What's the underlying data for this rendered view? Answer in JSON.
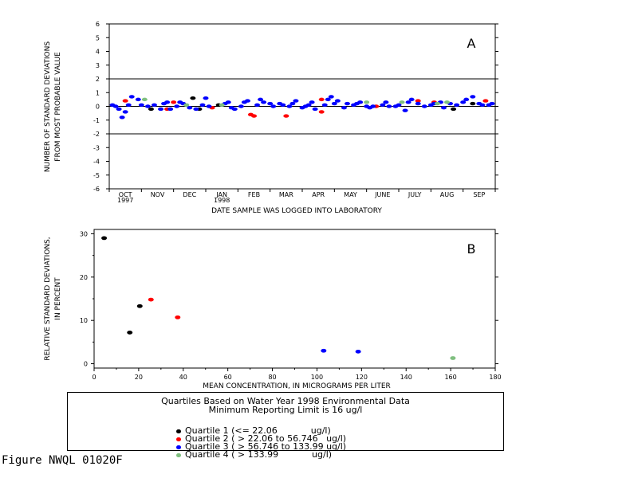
{
  "colors": {
    "quartile1": "#000000",
    "quartile2": "#ff0000",
    "quartile3": "#0000ff",
    "quartile4": "#7fbf7f"
  },
  "chart_data": [
    {
      "panel": "A",
      "type": "scatter",
      "xlabel": "DATE SAMPLE WAS LOGGED INTO LABORATORY",
      "ylabel": [
        "NUMBER OF STANDARD DEVIATIONS",
        "FROM MOST PROBABLE VALUE"
      ],
      "ylim": [
        -6,
        6
      ],
      "yticks": [
        -6,
        -5,
        -4,
        -3,
        -2,
        -1,
        0,
        1,
        2,
        3,
        4,
        5,
        6
      ],
      "months": [
        {
          "label": "OCT",
          "year": "1997"
        },
        {
          "label": "NOV",
          "year": ""
        },
        {
          "label": "DEC",
          "year": ""
        },
        {
          "label": "JAN",
          "year": "1998"
        },
        {
          "label": "FEB",
          "year": ""
        },
        {
          "label": "MAR",
          "year": ""
        },
        {
          "label": "APR",
          "year": ""
        },
        {
          "label": "MAY",
          "year": ""
        },
        {
          "label": "JUNE",
          "year": ""
        },
        {
          "label": "JULY",
          "year": ""
        },
        {
          "label": "AUG",
          "year": ""
        },
        {
          "label": "SEP",
          "year": ""
        }
      ],
      "reference_lines": [
        2,
        0,
        -2
      ],
      "series": [
        {
          "quartile": 1,
          "points": [
            [
              1.3,
              -0.2
            ],
            [
              2.6,
              0.6
            ],
            [
              2.8,
              -0.2
            ],
            [
              3.4,
              0.1
            ],
            [
              10.7,
              -0.2
            ],
            [
              11.3,
              0.2
            ]
          ]
        },
        {
          "quartile": 2,
          "points": [
            [
              0.5,
              0.4
            ],
            [
              1.8,
              -0.2
            ],
            [
              2.0,
              0.3
            ],
            [
              3.2,
              -0.1
            ],
            [
              4.4,
              -0.6
            ],
            [
              4.5,
              -0.7
            ],
            [
              5.5,
              -0.7
            ],
            [
              6.6,
              0.5
            ],
            [
              6.6,
              -0.4
            ],
            [
              8.3,
              0.0
            ],
            [
              9.6,
              0.4
            ],
            [
              10.1,
              0.3
            ],
            [
              11.7,
              0.4
            ]
          ]
        },
        {
          "quartile": 3,
          "points": [
            [
              0.1,
              0.1
            ],
            [
              0.2,
              0.0
            ],
            [
              0.3,
              -0.2
            ],
            [
              0.4,
              -0.8
            ],
            [
              0.5,
              -0.4
            ],
            [
              0.6,
              0.1
            ],
            [
              0.7,
              0.7
            ],
            [
              0.9,
              0.5
            ],
            [
              1.0,
              0.1
            ],
            [
              1.2,
              0.0
            ],
            [
              1.4,
              0.1
            ],
            [
              1.6,
              -0.2
            ],
            [
              1.7,
              0.2
            ],
            [
              1.8,
              0.3
            ],
            [
              1.9,
              -0.2
            ],
            [
              2.1,
              0.0
            ],
            [
              2.2,
              0.3
            ],
            [
              2.3,
              0.2
            ],
            [
              2.5,
              -0.1
            ],
            [
              2.7,
              -0.2
            ],
            [
              2.9,
              0.1
            ],
            [
              3.0,
              0.6
            ],
            [
              3.1,
              0.0
            ],
            [
              3.6,
              0.2
            ],
            [
              3.7,
              0.3
            ],
            [
              3.8,
              -0.1
            ],
            [
              3.9,
              -0.2
            ],
            [
              4.1,
              0.0
            ],
            [
              4.2,
              0.3
            ],
            [
              4.3,
              0.4
            ],
            [
              4.6,
              0.1
            ],
            [
              4.7,
              0.5
            ],
            [
              4.8,
              0.3
            ],
            [
              5.0,
              0.2
            ],
            [
              5.1,
              0.0
            ],
            [
              5.3,
              0.2
            ],
            [
              5.4,
              0.1
            ],
            [
              5.6,
              0.0
            ],
            [
              5.7,
              0.2
            ],
            [
              5.8,
              0.4
            ],
            [
              6.0,
              -0.1
            ],
            [
              6.1,
              0.0
            ],
            [
              6.2,
              0.1
            ],
            [
              6.3,
              0.3
            ],
            [
              6.4,
              -0.2
            ],
            [
              6.7,
              0.1
            ],
            [
              6.8,
              0.5
            ],
            [
              6.9,
              0.7
            ],
            [
              7.0,
              0.2
            ],
            [
              7.1,
              0.4
            ],
            [
              7.3,
              -0.1
            ],
            [
              7.4,
              0.2
            ],
            [
              7.6,
              0.1
            ],
            [
              7.7,
              0.2
            ],
            [
              7.8,
              0.3
            ],
            [
              8.0,
              0.0
            ],
            [
              8.1,
              -0.1
            ],
            [
              8.2,
              0.0
            ],
            [
              8.5,
              0.1
            ],
            [
              8.6,
              0.3
            ],
            [
              8.7,
              0.0
            ],
            [
              8.9,
              0.0
            ],
            [
              9.0,
              0.1
            ],
            [
              9.2,
              -0.3
            ],
            [
              9.3,
              0.3
            ],
            [
              9.4,
              0.5
            ],
            [
              9.6,
              0.2
            ],
            [
              9.8,
              0.0
            ],
            [
              10.0,
              0.1
            ],
            [
              10.1,
              0.2
            ],
            [
              10.3,
              0.3
            ],
            [
              10.4,
              -0.1
            ],
            [
              10.6,
              0.2
            ],
            [
              10.8,
              0.1
            ],
            [
              11.0,
              0.3
            ],
            [
              11.1,
              0.5
            ],
            [
              11.3,
              0.7
            ],
            [
              11.5,
              0.2
            ],
            [
              11.6,
              0.1
            ],
            [
              11.8,
              0.1
            ],
            [
              11.9,
              0.2
            ]
          ]
        },
        {
          "quartile": 4,
          "points": [
            [
              1.1,
              0.5
            ],
            [
              2.4,
              0.1
            ],
            [
              3.5,
              0.1
            ],
            [
              8.0,
              0.3
            ],
            [
              9.1,
              0.3
            ],
            [
              10.2,
              0.2
            ],
            [
              10.5,
              0.3
            ]
          ]
        }
      ]
    },
    {
      "panel": "B",
      "type": "scatter",
      "xlabel": "MEAN CONCENTRATION, IN MICROGRAMS PER LITER",
      "ylabel": [
        "RELATIVE STANDARD DEVIATIONS,",
        "IN PERCENT"
      ],
      "xlim": [
        0,
        180
      ],
      "ylim": [
        -1,
        31
      ],
      "xticks": [
        0,
        20,
        40,
        60,
        80,
        100,
        120,
        140,
        160,
        180
      ],
      "yticks": [
        0,
        10,
        20,
        30
      ],
      "series": [
        {
          "quartile": 1,
          "points": [
            [
              4.5,
              29.0
            ],
            [
              16.0,
              7.2
            ],
            [
              20.5,
              13.3
            ]
          ]
        },
        {
          "quartile": 2,
          "points": [
            [
              25.5,
              14.8
            ],
            [
              37.5,
              10.7
            ]
          ]
        },
        {
          "quartile": 3,
          "points": [
            [
              103.0,
              3.0
            ],
            [
              118.5,
              2.8
            ]
          ]
        },
        {
          "quartile": 4,
          "points": [
            [
              161.0,
              1.3
            ]
          ]
        }
      ]
    }
  ],
  "legend": {
    "title_line1": "Quartiles Based on Water Year 1998 Environmental Data",
    "title_line2": "Minimum Reporting Limit is 16 ug/l",
    "entries": [
      "Quartile 1 (<= 22.06            ug/l)",
      "Quartile 2 ( > 22.06 to 56.746   ug/l)",
      "Quartile 3 ( > 56.746 to 133.99 ug/l)",
      "Quartile 4 ( > 133.99            ug/l)"
    ]
  },
  "figure_id": "Figure NWQL 01020F"
}
